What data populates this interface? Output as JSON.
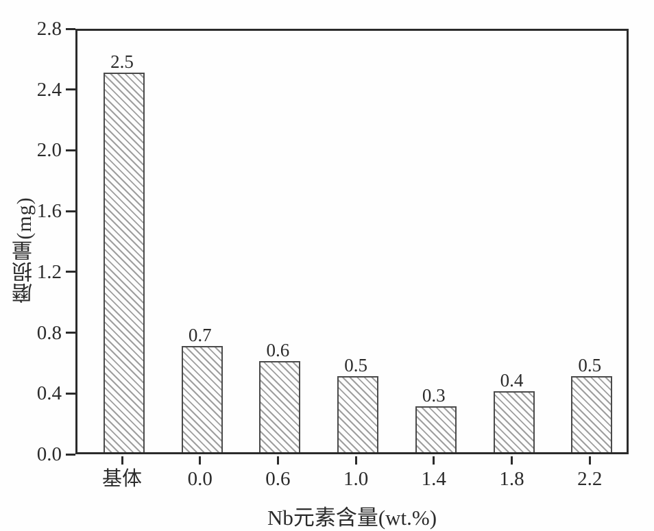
{
  "chart_data": {
    "type": "bar",
    "title": "",
    "xlabel": "Nb元素含量(wt.%)",
    "ylabel": "磨损量(mg)",
    "categories": [
      "基体",
      "0.0",
      "0.6",
      "1.0",
      "1.4",
      "1.8",
      "2.2"
    ],
    "values": [
      2.5,
      0.7,
      0.6,
      0.5,
      0.3,
      0.4,
      0.5
    ],
    "bar_labels": [
      "2.5",
      "0.7",
      "0.6",
      "0.5",
      "0.3",
      "0.4",
      "0.5"
    ],
    "ylim": [
      0,
      2.8
    ],
    "yticks": [
      "0.0",
      "0.4",
      "0.8",
      "1.2",
      "1.6",
      "2.0",
      "2.4",
      "2.8"
    ],
    "legend": null,
    "grid": false,
    "hatch": "diagonal-forward-slash",
    "colors": {
      "background": "#fefefe",
      "axis": "#2b2b2b",
      "text": "#2b2b2b",
      "bar_fill": "#fdfdfd",
      "hatch_line": "#9e9e9e",
      "bar_border": "#4a4a4a"
    }
  }
}
